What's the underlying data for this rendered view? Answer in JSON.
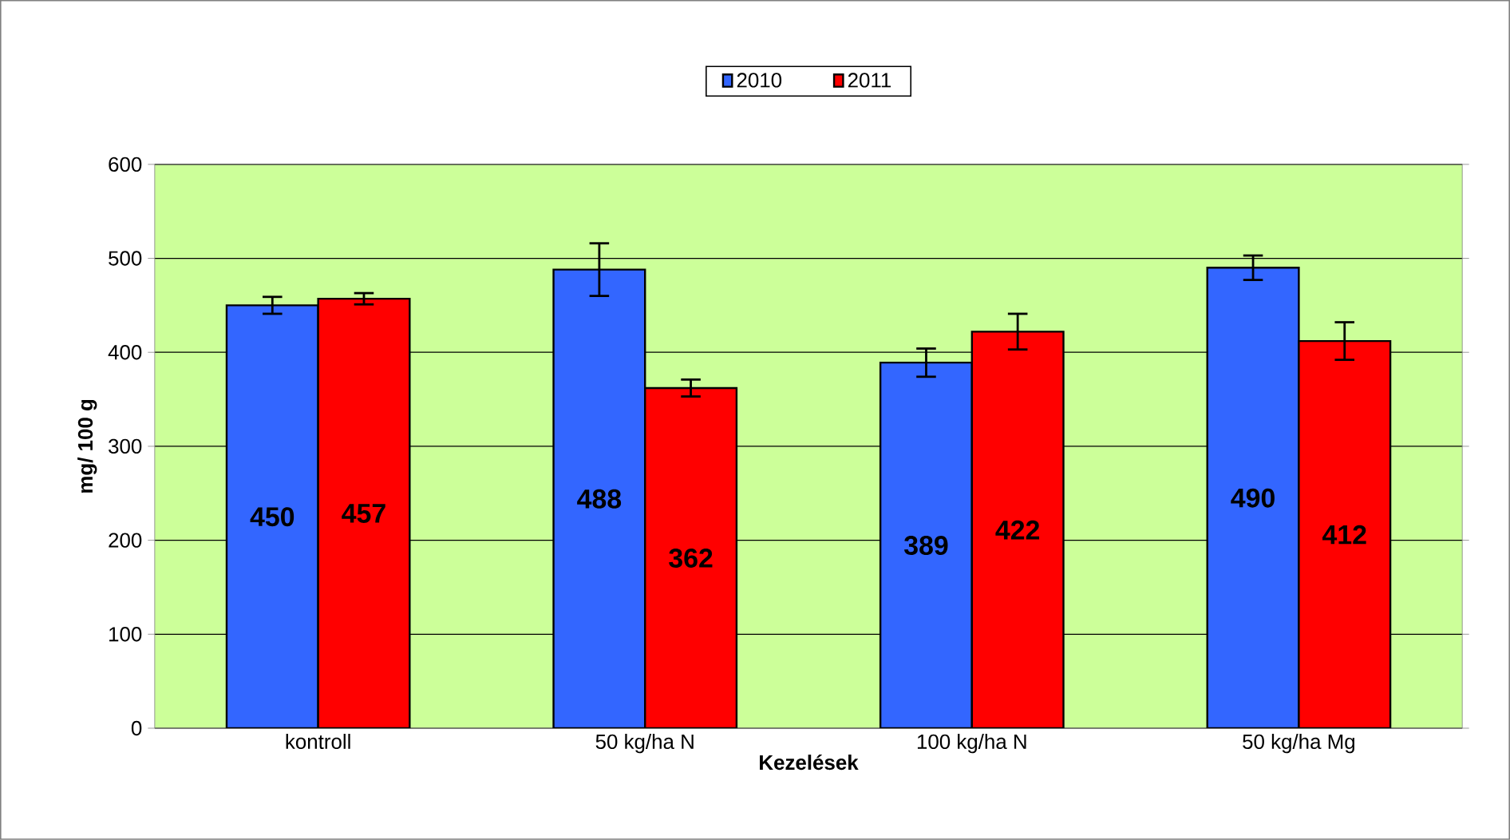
{
  "chart_data": {
    "type": "bar",
    "xlabel": "Kezelések",
    "ylabel": "mg/ 100 g",
    "categories": [
      "kontroll",
      "50 kg/ha N",
      "100 kg/ha N",
      "50 kg/ha Mg"
    ],
    "series": [
      {
        "name": "2010",
        "color": "#3366ff",
        "values": [
          450,
          488,
          389,
          490
        ],
        "errors": [
          9,
          28,
          15,
          13
        ]
      },
      {
        "name": "2011",
        "color": "#ff0000",
        "values": [
          457,
          362,
          422,
          412
        ],
        "errors": [
          6,
          9,
          19,
          20
        ]
      }
    ],
    "ylim": [
      0,
      600
    ],
    "yticks": [
      0,
      100,
      200,
      300,
      400,
      500,
      600
    ],
    "grid": "y",
    "legend": "top",
    "data_labels": true
  }
}
